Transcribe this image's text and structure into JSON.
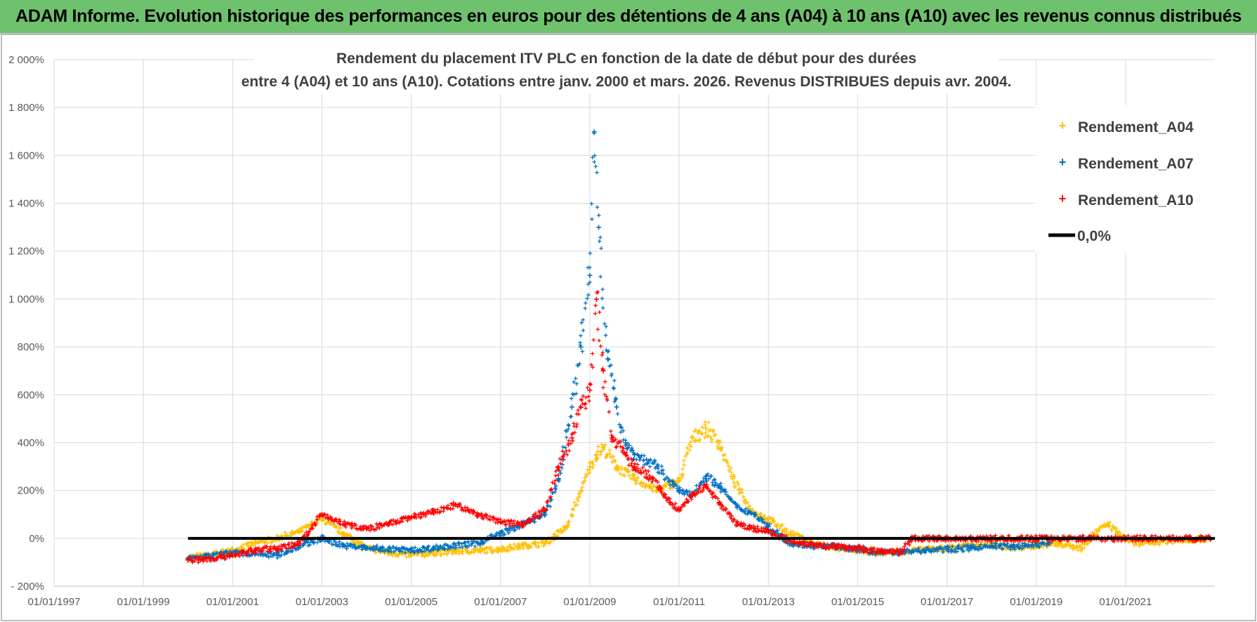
{
  "banner": {
    "title": "ADAM Informe. Evolution historique des performances en euros pour des détentions de 4 ans (A04) à 10 ans (A10) avec les revenus connus distribués"
  },
  "colors": {
    "banner_bg": "#6fc26d",
    "a04": "#ffc000",
    "a07": "#0070c0",
    "a10": "#ff0000",
    "zero": "#000000",
    "grid": "#d9d9d9"
  },
  "chart_data": {
    "type": "scatter",
    "title": [
      "Rendement du placement ITV PLC en fonction de la date de début pour des durées",
      "entre 4 (A04) et 10 ans (A10). Cotations entre janv. 2000 et mars. 2026. Revenus DISTRIBUES depuis avr. 2004."
    ],
    "xlabel": "",
    "ylabel": "",
    "xlim": [
      1997.0,
      2023.0
    ],
    "ylim": [
      -200,
      2000
    ],
    "grid": true,
    "legend_position": "top-right",
    "x_tick_labels": [
      "01/01/1997",
      "01/01/1999",
      "01/01/2001",
      "01/01/2003",
      "01/01/2005",
      "01/01/2007",
      "01/01/2009",
      "01/01/2011",
      "01/01/2013",
      "01/01/2015",
      "01/01/2017",
      "01/01/2019",
      "01/01/2021"
    ],
    "x_ticks": [
      1997,
      1999,
      2001,
      2003,
      2005,
      2007,
      2009,
      2011,
      2013,
      2015,
      2017,
      2019,
      2021
    ],
    "y_tick_labels": [
      "- 200%",
      "0%",
      "200%",
      "400%",
      "600%",
      "800%",
      "1 000%",
      "1 200%",
      "1 400%",
      "1 600%",
      "1 800%",
      "2 000%"
    ],
    "y_ticks": [
      -200,
      0,
      200,
      400,
      600,
      800,
      1000,
      1200,
      1400,
      1600,
      1800,
      2000
    ],
    "series": [
      {
        "name": "Rendement_A04",
        "color": "#ffc000",
        "x": [
          2000.0,
          2000.5,
          2001.0,
          2001.5,
          2002.0,
          2002.5,
          2003.0,
          2003.5,
          2004.0,
          2004.5,
          2005.0,
          2005.5,
          2006.0,
          2006.5,
          2007.0,
          2007.5,
          2008.0,
          2008.5,
          2008.8,
          2009.0,
          2009.15,
          2009.3,
          2009.6,
          2010.0,
          2010.5,
          2011.0,
          2011.3,
          2011.6,
          2011.9,
          2012.2,
          2012.6,
          2013.0,
          2013.5,
          2014.0,
          2014.5,
          2015.0,
          2015.5,
          2016.0,
          2016.5,
          2017.0,
          2017.5,
          2018.0,
          2018.5,
          2019.0,
          2019.5,
          2020.0,
          2020.3,
          2020.6,
          2020.9,
          2021.2,
          2021.6,
          2022.0,
          2022.4,
          2022.8
        ],
        "y": [
          -80,
          -70,
          -50,
          -20,
          0,
          30,
          80,
          20,
          -40,
          -60,
          -70,
          -60,
          -55,
          -50,
          -45,
          -30,
          -20,
          50,
          200,
          300,
          350,
          380,
          300,
          250,
          200,
          240,
          420,
          460,
          400,
          250,
          120,
          80,
          20,
          -20,
          -40,
          -50,
          -60,
          -55,
          -45,
          -40,
          -30,
          -25,
          -40,
          -30,
          -20,
          -40,
          20,
          60,
          10,
          -20,
          -15,
          -10,
          -5,
          0
        ]
      },
      {
        "name": "Rendement_A07",
        "color": "#0070c0",
        "x": [
          2000.0,
          2000.5,
          2001.0,
          2001.5,
          2002.0,
          2002.5,
          2003.0,
          2003.5,
          2004.0,
          2004.5,
          2005.0,
          2005.5,
          2006.0,
          2006.5,
          2007.0,
          2007.5,
          2008.0,
          2008.3,
          2008.6,
          2008.8,
          2009.0,
          2009.1,
          2009.2,
          2009.4,
          2009.6,
          2009.8,
          2010.0,
          2010.5,
          2011.0,
          2011.3,
          2011.6,
          2011.9,
          2012.3,
          2012.7,
          2013.0,
          2013.5,
          2014.0,
          2014.5,
          2015.0,
          2015.5,
          2016.0,
          2016.5,
          2017.0,
          2017.5,
          2018.0,
          2018.5,
          2019.0,
          2019.3
        ],
        "y": [
          -85,
          -75,
          -60,
          -65,
          -70,
          -30,
          0,
          -30,
          -40,
          -45,
          -50,
          -40,
          -30,
          -20,
          20,
          60,
          100,
          250,
          550,
          800,
          1100,
          1700,
          1300,
          750,
          550,
          400,
          350,
          300,
          200,
          180,
          260,
          220,
          130,
          100,
          50,
          -20,
          -30,
          -35,
          -45,
          -60,
          -55,
          -50,
          -45,
          -40,
          -30,
          -35,
          -25,
          -20
        ]
      },
      {
        "name": "Rendement_A10",
        "color": "#ff0000",
        "x": [
          2000.0,
          2000.5,
          2001.0,
          2001.5,
          2002.0,
          2002.5,
          2003.0,
          2003.5,
          2004.0,
          2004.5,
          2005.0,
          2005.5,
          2006.0,
          2006.5,
          2007.0,
          2007.5,
          2008.0,
          2008.3,
          2008.6,
          2008.8,
          2009.0,
          2009.15,
          2009.3,
          2009.5,
          2009.8,
          2010.0,
          2010.4,
          2010.8,
          2011.0,
          2011.3,
          2011.6,
          2011.9,
          2012.3,
          2012.7,
          2013.0,
          2013.5,
          2014.0,
          2014.5,
          2015.0,
          2015.5,
          2016.0,
          2016.2,
          2016.5,
          2017.0,
          2018.0,
          2019.0,
          2020.0,
          2021.0,
          2022.0,
          2022.9
        ],
        "y": [
          -90,
          -85,
          -70,
          -50,
          -40,
          -20,
          100,
          60,
          40,
          60,
          90,
          110,
          140,
          100,
          70,
          60,
          120,
          300,
          420,
          550,
          620,
          1000,
          700,
          420,
          350,
          300,
          250,
          150,
          120,
          180,
          220,
          150,
          60,
          40,
          30,
          -10,
          -25,
          -35,
          -40,
          -55,
          -55,
          0,
          0,
          0,
          0,
          0,
          0,
          0,
          0,
          0
        ]
      },
      {
        "name": "0,0%",
        "color": "#000000",
        "x": [
          2000.0,
          2023.0
        ],
        "y": [
          0,
          0
        ]
      }
    ]
  }
}
